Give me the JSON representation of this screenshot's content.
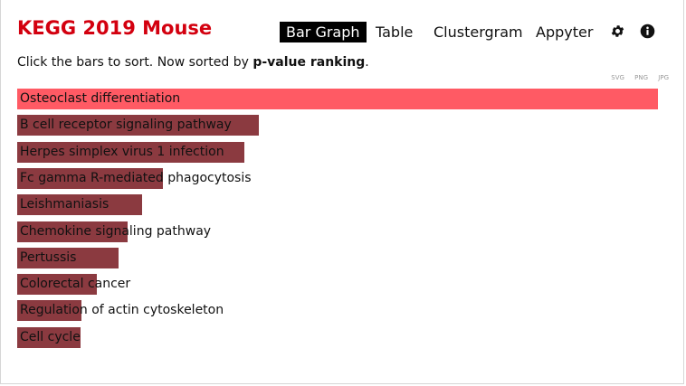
{
  "header": {
    "title": "KEGG 2019 Mouse",
    "nav": [
      {
        "label": "Bar Graph",
        "active": true
      },
      {
        "label": "Table",
        "active": false
      },
      {
        "label": "Clustergram",
        "active": false
      },
      {
        "label": "Appyter",
        "active": false
      }
    ],
    "icons": [
      "gear-icon",
      "info-icon"
    ]
  },
  "instructions": {
    "prefix": "Click the bars to sort. Now sorted by ",
    "sort_key": "p-value ranking",
    "suffix": "."
  },
  "exports": [
    "SVG",
    "PNG",
    "JPG"
  ],
  "colors": {
    "title": "#d3000f",
    "top_bar": "#ff5a64",
    "bar": "#8b3a40",
    "active_tab_bg": "#000000"
  },
  "chart_data": {
    "type": "bar",
    "orientation": "horizontal",
    "categories": [
      "Osteoclast differentiation",
      "B cell receptor signaling pathway",
      "Herpes simplex virus 1 infection",
      "Fc gamma R-mediated phagocytosis",
      "Leishmaniasis",
      "Chemokine signaling pathway",
      "Pertussis",
      "Colorectal cancer",
      "Regulation of actin cytoskeleton",
      "Cell cycle"
    ],
    "values": [
      1.0,
      0.377,
      0.355,
      0.228,
      0.195,
      0.172,
      0.158,
      0.124,
      0.1,
      0.099
    ],
    "value_scale": "relative",
    "sorted_by": "p-value ranking"
  }
}
